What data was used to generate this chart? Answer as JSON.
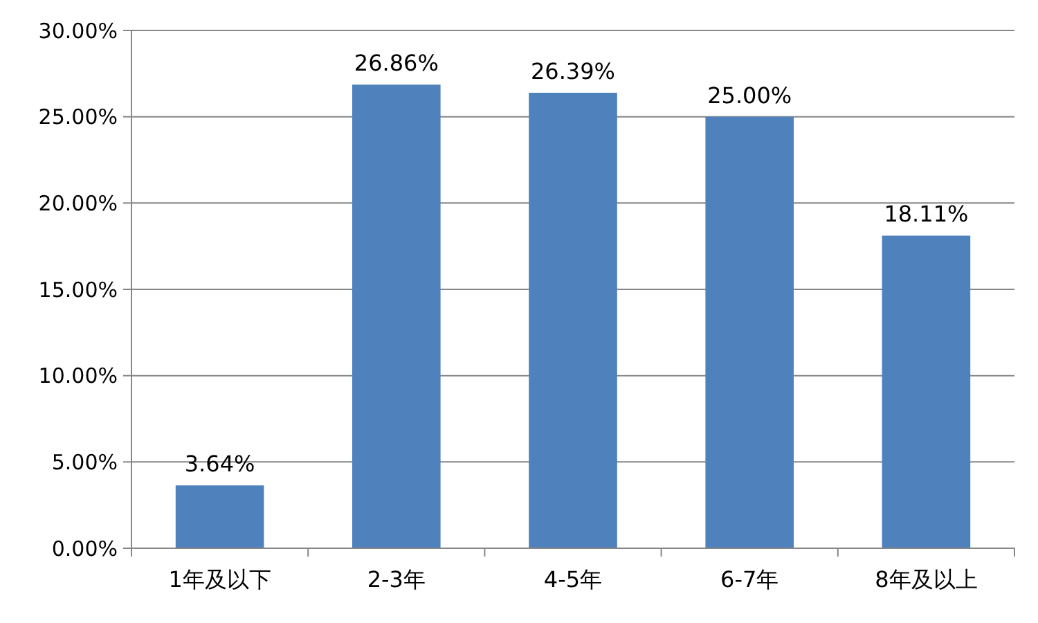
{
  "chart_data": {
    "type": "bar",
    "categories": [
      "1年及以下",
      "2-3年",
      "4-5年",
      "6-7年",
      "8年及以上"
    ],
    "values": [
      3.64,
      26.86,
      26.39,
      25.0,
      18.11
    ],
    "value_labels": [
      "3.64%",
      "26.86%",
      "26.39%",
      "25.00%",
      "18.11%"
    ],
    "color": "#4f81bd",
    "ylim": [
      0,
      30
    ],
    "yticks": [
      {
        "value": 0,
        "label": "0.00%"
      },
      {
        "value": 5,
        "label": "5.00%"
      },
      {
        "value": 10,
        "label": "10.00%"
      },
      {
        "value": 15,
        "label": "15.00%"
      },
      {
        "value": 20,
        "label": "20.00%"
      },
      {
        "value": 25,
        "label": "25.00%"
      },
      {
        "value": 30,
        "label": "30.00%"
      }
    ],
    "grid": "y"
  }
}
